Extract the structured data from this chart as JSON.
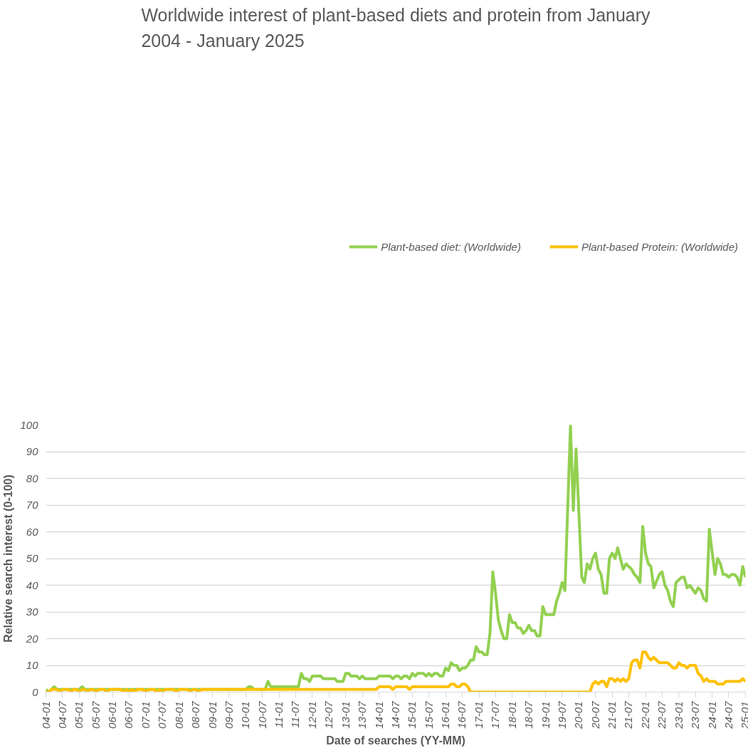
{
  "chart_data": {
    "type": "line",
    "title": "Worldwide interest of plant-based diets and protein from January 2004 - January 2025",
    "xlabel": "Date of searches (YY-MM)",
    "ylabel": "Relative search interest (0-100)",
    "xlim": [
      "2004-01",
      "2025-01"
    ],
    "ylim": [
      0,
      100
    ],
    "yticks": [
      0,
      10,
      20,
      30,
      40,
      50,
      60,
      70,
      80,
      90,
      100
    ],
    "xticks": [
      {
        "value": "2004-01",
        "label": "04-01"
      },
      {
        "value": "2004-07",
        "label": "04-07"
      },
      {
        "value": "2005-01",
        "label": "05-01"
      },
      {
        "value": "2005-07",
        "label": "05-07"
      },
      {
        "value": "2006-01",
        "label": "06-01"
      },
      {
        "value": "2006-07",
        "label": "06-07"
      },
      {
        "value": "2007-01",
        "label": "07-01"
      },
      {
        "value": "2007-07",
        "label": "07-07"
      },
      {
        "value": "2008-01",
        "label": "08-01"
      },
      {
        "value": "2008-07",
        "label": "08-07"
      },
      {
        "value": "2009-01",
        "label": "09-01"
      },
      {
        "value": "2009-07",
        "label": "09-07"
      },
      {
        "value": "2010-01",
        "label": "10-01"
      },
      {
        "value": "2010-07",
        "label": "10-07"
      },
      {
        "value": "2011-01",
        "label": "11-01"
      },
      {
        "value": "2011-07",
        "label": "11-07"
      },
      {
        "value": "2012-01",
        "label": "12-01"
      },
      {
        "value": "2012-07",
        "label": "12-07"
      },
      {
        "value": "2013-01",
        "label": "13-01"
      },
      {
        "value": "2013-07",
        "label": "13-07"
      },
      {
        "value": "2014-01",
        "label": "14-01"
      },
      {
        "value": "2014-07",
        "label": "14-07"
      },
      {
        "value": "2015-01",
        "label": "15-01"
      },
      {
        "value": "2015-07",
        "label": "15-07"
      },
      {
        "value": "2016-01",
        "label": "16-01"
      },
      {
        "value": "2016-07",
        "label": "16-07"
      },
      {
        "value": "2017-01",
        "label": "17-01"
      },
      {
        "value": "2017-07",
        "label": "17-07"
      },
      {
        "value": "2018-01",
        "label": "18-01"
      },
      {
        "value": "2018-07",
        "label": "18-07"
      },
      {
        "value": "2019-01",
        "label": "19-01"
      },
      {
        "value": "2019-07",
        "label": "19-07"
      },
      {
        "value": "2020-01",
        "label": "20-01"
      },
      {
        "value": "2020-07",
        "label": "20-07"
      },
      {
        "value": "2021-01",
        "label": "21-01"
      },
      {
        "value": "2021-07",
        "label": "21-07"
      },
      {
        "value": "2022-01",
        "label": "22-01"
      },
      {
        "value": "2022-07",
        "label": "22-07"
      },
      {
        "value": "2023-01",
        "label": "23-01"
      },
      {
        "value": "2023-07",
        "label": "23-07"
      },
      {
        "value": "2024-01",
        "label": "24-01"
      },
      {
        "value": "2024-07",
        "label": "24-07"
      },
      {
        "value": "2025-01",
        "label": "25-01"
      }
    ],
    "grid": "y",
    "legend": "top",
    "marker": "none",
    "line_style": "solid",
    "series": [
      {
        "name": "Plant-based diet: (Worldwide)",
        "color": "#92d050",
        "x": [
          "2004-01",
          "2004-02",
          "2004-03",
          "2004-04",
          "2004-05",
          "2005-01",
          "2005-02",
          "2005-03",
          "2010-01",
          "2010-02",
          "2010-03",
          "2010-04",
          "2010-08",
          "2010-09",
          "2010-10",
          "2011-08",
          "2011-09",
          "2011-10",
          "2011-11",
          "2011-12",
          "2012-01",
          "2012-04",
          "2012-05",
          "2012-09",
          "2012-10",
          "2012-12",
          "2013-01",
          "2013-02",
          "2013-03",
          "2013-05",
          "2013-06",
          "2013-07",
          "2013-08",
          "2013-12",
          "2014-01",
          "2014-05",
          "2014-06",
          "2014-07",
          "2014-08",
          "2014-09",
          "2014-10",
          "2014-11",
          "2014-12",
          "2015-01",
          "2015-02",
          "2015-03",
          "2015-05",
          "2015-06",
          "2015-07",
          "2015-08",
          "2015-09",
          "2015-10",
          "2015-11",
          "2015-12",
          "2016-01",
          "2016-02",
          "2016-03",
          "2016-04",
          "2016-05",
          "2016-06",
          "2016-07",
          "2016-08",
          "2016-09",
          "2016-10",
          "2016-11",
          "2016-12",
          "2017-01",
          "2017-02",
          "2017-03",
          "2017-04",
          "2017-05",
          "2017-06",
          "2017-07",
          "2017-08",
          "2017-09",
          "2017-10",
          "2017-11",
          "2017-12",
          "2018-01",
          "2018-02",
          "2018-03",
          "2018-04",
          "2018-05",
          "2018-06",
          "2018-07",
          "2018-08",
          "2018-09",
          "2018-10",
          "2018-11",
          "2018-12",
          "2019-01",
          "2019-04",
          "2019-05",
          "2019-06",
          "2019-07",
          "2019-08",
          "2019-10",
          "2019-11",
          "2019-12",
          "2020-02",
          "2020-03",
          "2020-04",
          "2020-05",
          "2020-06",
          "2020-07",
          "2020-08",
          "2020-09",
          "2020-10",
          "2020-11",
          "2020-12",
          "2021-01",
          "2021-02",
          "2021-03",
          "2021-05",
          "2021-06",
          "2021-08",
          "2021-09",
          "2021-10",
          "2021-11",
          "2021-12",
          "2022-01",
          "2022-02",
          "2022-03",
          "2022-04",
          "2022-06",
          "2022-07",
          "2022-08",
          "2022-09",
          "2022-10",
          "2022-11",
          "2022-12",
          "2023-02",
          "2023-03",
          "2023-04",
          "2023-05",
          "2023-07",
          "2023-08",
          "2023-09",
          "2023-10",
          "2023-11",
          "2023-12",
          "2024-02",
          "2024-03",
          "2024-04",
          "2024-05",
          "2024-06",
          "2024-07",
          "2024-08",
          "2024-09",
          "2024-10",
          "2024-11",
          "2024-12",
          "2025-01"
        ],
        "values": [
          1,
          0,
          1,
          2,
          1,
          1,
          2,
          1,
          1,
          2,
          2,
          1,
          1,
          4,
          2,
          2,
          7,
          5,
          5,
          4,
          6,
          6,
          5,
          5,
          4,
          4,
          7,
          7,
          6,
          6,
          5,
          6,
          5,
          5,
          6,
          6,
          5,
          6,
          6,
          5,
          6,
          6,
          5,
          7,
          6,
          7,
          7,
          6,
          7,
          6,
          7,
          7,
          6,
          6,
          9,
          8,
          11,
          10,
          10,
          8,
          9,
          9,
          10,
          12,
          12,
          17,
          15,
          15,
          14,
          14,
          22,
          45,
          37,
          27,
          23,
          20,
          20,
          29,
          26,
          26,
          24,
          24,
          22,
          23,
          25,
          23,
          23,
          21,
          21,
          32,
          29,
          29,
          34,
          37,
          41,
          38,
          100,
          68,
          91,
          43,
          41,
          48,
          46,
          50,
          52,
          46,
          44,
          37,
          37,
          50,
          52,
          50,
          54,
          46,
          48,
          46,
          44,
          43,
          41,
          62,
          52,
          48,
          47,
          39,
          44,
          45,
          40,
          38,
          34,
          32,
          41,
          43,
          43,
          39,
          40,
          37,
          39,
          38,
          35,
          34,
          61,
          44,
          50,
          48,
          44,
          44,
          43,
          44,
          44,
          43,
          40,
          47,
          43
        ]
      },
      {
        "name": "Plant-based Protein: (Worldwide)",
        "color": "#ffc000",
        "x": [
          "2004-01",
          "2004-02",
          "2004-03",
          "2004-05",
          "2004-06",
          "2004-07",
          "2004-09",
          "2004-10",
          "2004-11",
          "2004-12",
          "2005-01",
          "2005-02",
          "2005-03",
          "2005-04",
          "2005-05",
          "2005-06",
          "2005-07",
          "2005-08",
          "2005-10",
          "2005-11",
          "2005-12",
          "2006-04",
          "2006-05",
          "2006-06",
          "2006-07",
          "2006-08",
          "2006-09",
          "2006-10",
          "2006-12",
          "2007-01",
          "2007-02",
          "2007-04",
          "2007-05",
          "2007-06",
          "2007-07",
          "2007-08",
          "2007-11",
          "2007-12",
          "2008-01",
          "2008-04",
          "2008-05",
          "2008-06",
          "2008-07",
          "2008-08",
          "2008-09",
          "2013-12",
          "2014-01",
          "2014-05",
          "2014-06",
          "2014-07",
          "2014-11",
          "2014-12",
          "2015-01",
          "2016-02",
          "2016-03",
          "2016-04",
          "2016-05",
          "2016-06",
          "2016-07",
          "2016-08",
          "2016-09",
          "2016-10",
          "2020-05",
          "2020-06",
          "2020-07",
          "2020-08",
          "2020-09",
          "2020-10",
          "2020-11",
          "2020-12",
          "2021-01",
          "2021-02",
          "2021-03",
          "2021-04",
          "2021-05",
          "2021-06",
          "2021-07",
          "2021-08",
          "2021-09",
          "2021-10",
          "2021-11",
          "2021-12",
          "2022-01",
          "2022-02",
          "2022-03",
          "2022-04",
          "2022-05",
          "2022-06",
          "2022-09",
          "2022-10",
          "2022-11",
          "2022-12",
          "2023-01",
          "2023-02",
          "2023-03",
          "2023-04",
          "2023-05",
          "2023-07",
          "2023-08",
          "2023-09",
          "2023-10",
          "2023-11",
          "2023-12",
          "2024-02",
          "2024-03",
          "2024-05",
          "2024-06",
          "2024-10",
          "2024-11",
          "2024-12",
          "2025-01"
        ],
        "values": [
          0,
          0,
          1,
          1,
          0,
          1,
          1,
          0,
          1,
          1,
          0,
          1,
          1,
          0,
          1,
          1,
          0,
          1,
          1,
          0,
          1,
          1,
          0,
          1,
          0,
          1,
          0,
          1,
          1,
          0,
          1,
          1,
          0,
          1,
          0,
          1,
          1,
          0,
          1,
          1,
          0,
          1,
          1,
          0,
          1,
          1,
          2,
          2,
          1,
          2,
          2,
          1,
          2,
          2,
          3,
          3,
          2,
          2,
          3,
          3,
          2,
          0,
          0,
          3,
          4,
          3,
          4,
          4,
          2,
          5,
          5,
          4,
          5,
          4,
          5,
          4,
          5,
          11,
          12,
          12,
          9,
          15,
          15,
          13,
          12,
          13,
          12,
          11,
          11,
          10,
          9,
          9,
          11,
          10,
          10,
          9,
          10,
          10,
          7,
          6,
          4,
          5,
          4,
          4,
          3,
          3,
          4,
          4,
          4,
          5,
          4
        ]
      }
    ]
  }
}
